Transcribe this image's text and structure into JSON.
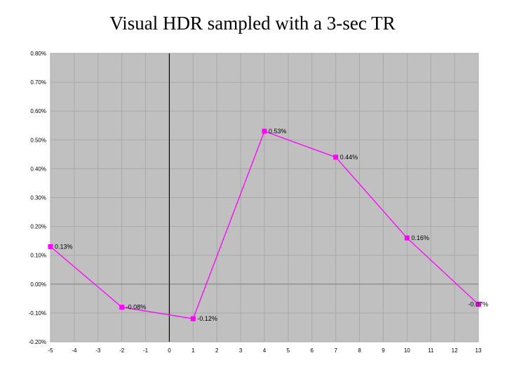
{
  "slide": {
    "title": "Visual HDR sampled with a 3-sec TR"
  },
  "chart_data": {
    "type": "line",
    "title": "Visual HDR sampled with a 3-sec TR",
    "xlabel": "",
    "ylabel": "",
    "x": [
      -5,
      -2,
      1,
      4,
      7,
      10,
      13
    ],
    "series": [
      {
        "values": [
          0.13,
          -0.08,
          -0.12,
          0.53,
          0.44,
          0.16,
          -0.07
        ],
        "labels": [
          "0.13%",
          "-0.08%",
          "-0.12%",
          "0.53%",
          "0.44%",
          "0.16%",
          "-0.07%"
        ],
        "color": "#ff00ff"
      }
    ],
    "xlim": [
      -5,
      13
    ],
    "ylim": [
      -0.2,
      0.8
    ],
    "x_ticks": [
      -5,
      -4,
      -3,
      -2,
      -1,
      0,
      1,
      2,
      3,
      4,
      5,
      6,
      7,
      8,
      9,
      10,
      11,
      12,
      13
    ],
    "x_tick_labels": [
      "-5",
      "-4",
      "-3",
      "-2",
      "-1",
      "0",
      "1",
      "2",
      "3",
      "4",
      "5",
      "6",
      "7",
      "8",
      "9",
      "10",
      "11",
      "12",
      "13"
    ],
    "y_ticks": [
      0.8,
      0.7,
      0.6,
      0.5,
      0.4,
      0.3,
      0.2,
      0.1,
      0.0,
      -0.1,
      -0.2
    ],
    "y_tick_labels": [
      "0.80%",
      "0.70%",
      "0.60%",
      "0.50%",
      "0.40%",
      "0.30%",
      "0.20%",
      "0.10%",
      "0.00%",
      "-0.10%",
      "-0.20%"
    ],
    "grid": true,
    "plot_background": "#c0c0c0",
    "grid_color": "#a8a8a8",
    "axis_color": "#000000"
  }
}
